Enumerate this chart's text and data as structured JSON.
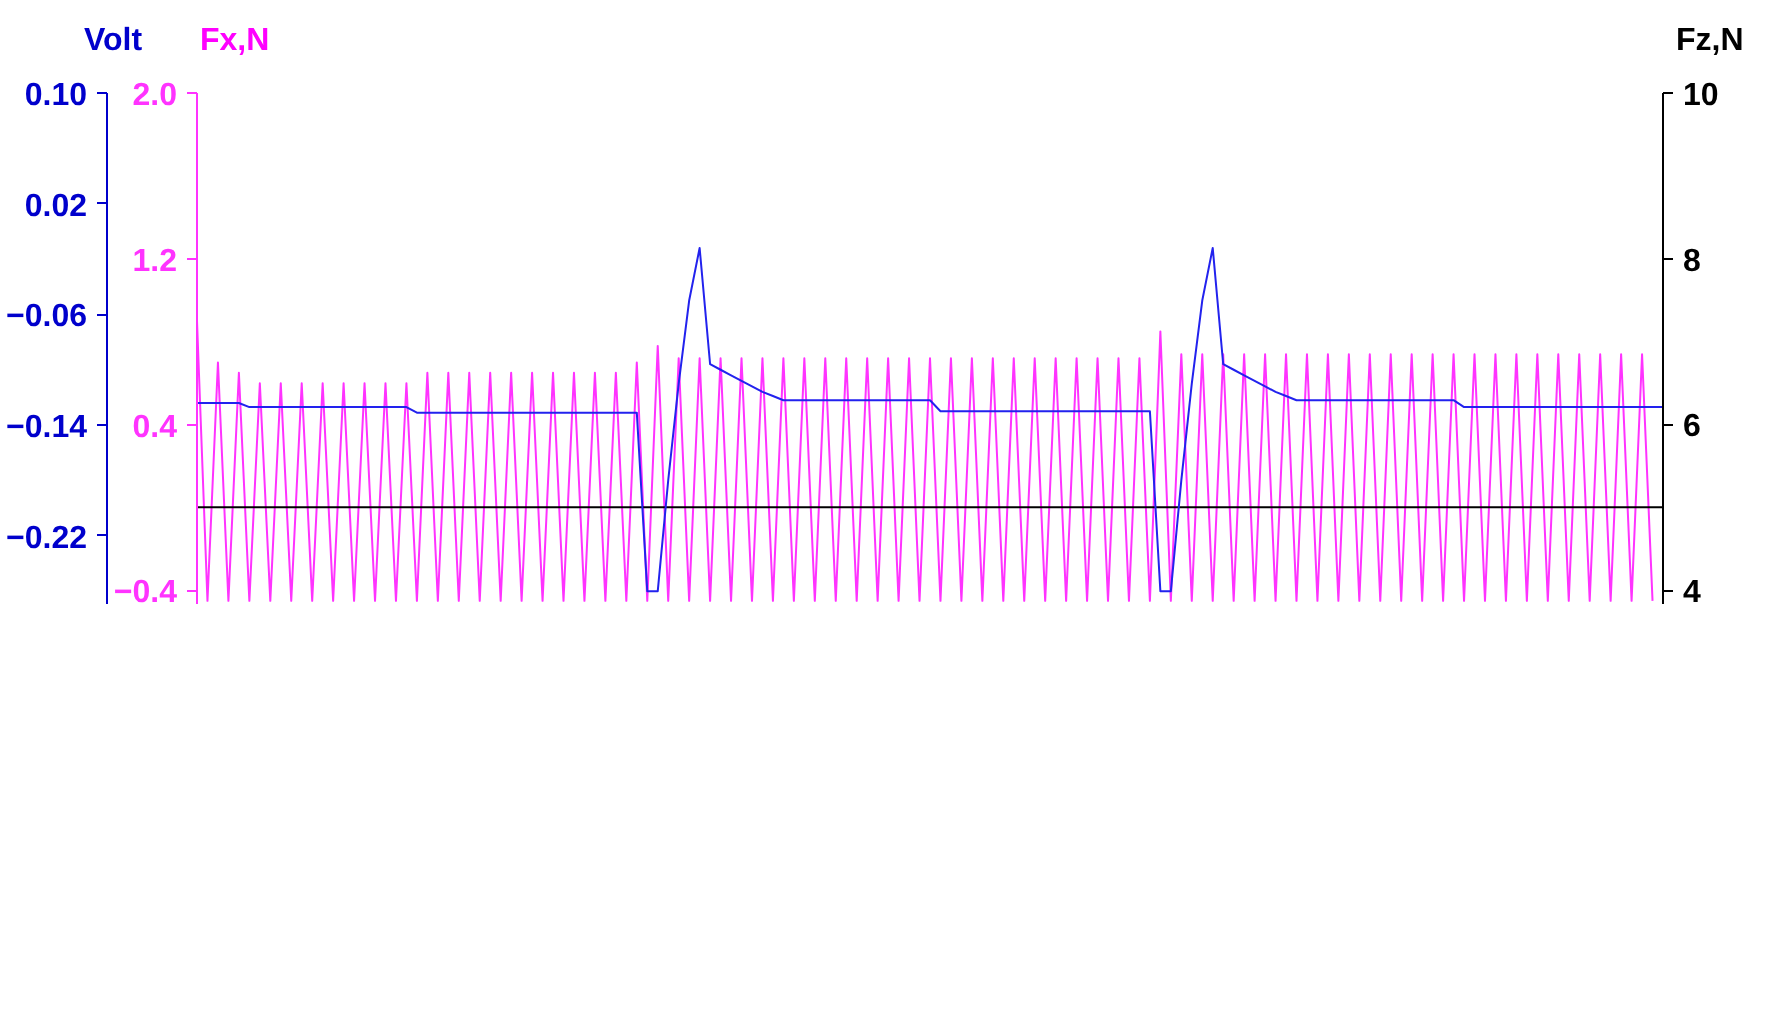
{
  "chart_data": {
    "type": "line",
    "ylabel": "Fx,N",
    "y2label": "Fz,N",
    "y3label": "Volt",
    "categories": [
      null,
      null,
      null,
      null,
      null,
      null,
      null,
      null,
      null,
      null,
      null,
      null,
      null,
      null,
      null,
      null,
      null,
      null,
      null,
      null,
      null,
      null,
      null,
      null,
      null,
      null,
      null,
      null,
      null,
      null,
      null,
      null,
      null,
      null,
      null,
      null,
      null,
      null,
      null,
      null,
      null,
      null,
      null,
      null,
      null,
      null,
      null,
      null,
      null,
      null,
      null,
      null,
      null,
      null,
      null,
      null,
      null,
      null,
      null,
      null,
      null,
      null,
      null,
      null,
      null,
      null,
      null,
      null,
      null,
      null,
      null,
      null,
      null,
      null,
      null,
      null,
      null,
      null,
      null,
      null,
      null,
      null,
      null,
      null,
      null,
      null,
      null,
      null,
      null,
      null,
      null,
      null,
      null,
      null,
      null,
      null,
      null,
      null,
      null,
      null,
      null,
      null,
      null,
      null,
      null,
      null,
      null,
      null,
      null,
      null,
      null,
      null,
      null,
      null,
      null,
      null,
      null,
      null,
      null,
      null,
      null,
      null,
      null,
      null,
      null,
      null,
      null,
      null,
      null,
      null,
      null,
      null,
      null,
      null,
      null,
      null,
      null,
      null,
      null,
      null,
      null
    ],
    "series": [
      {
        "color": "#ff33ff",
        "values": [
          0.9,
          -0.45,
          0.7,
          -0.45,
          0.65,
          -0.45,
          0.6,
          -0.45,
          0.6,
          -0.45,
          0.6,
          -0.45,
          0.6,
          -0.45,
          0.6,
          -0.45,
          0.6,
          -0.45,
          0.6,
          -0.45,
          0.6,
          -0.45,
          0.65,
          -0.45,
          0.65,
          -0.45,
          0.65,
          -0.45,
          0.65,
          -0.45,
          0.65,
          -0.45,
          0.65,
          -0.45,
          0.65,
          -0.45,
          0.65,
          -0.45,
          0.65,
          -0.45,
          0.65,
          -0.45,
          0.7,
          -0.45,
          0.78,
          -0.45,
          0.72,
          -0.45,
          0.72,
          -0.45,
          0.72,
          -0.45,
          0.72,
          -0.45,
          0.72,
          -0.45,
          0.72,
          -0.45,
          0.72,
          -0.45,
          0.72,
          -0.45,
          0.72,
          -0.45,
          0.72,
          -0.45,
          0.72,
          -0.45,
          0.72,
          -0.45,
          0.72,
          -0.45,
          0.72,
          -0.45,
          0.72,
          -0.45,
          0.72,
          -0.45,
          0.72,
          -0.45,
          0.72,
          -0.45,
          0.72,
          -0.45,
          0.72,
          -0.45,
          0.72,
          -0.45,
          0.72,
          -0.45,
          0.72,
          -0.45,
          0.85,
          -0.45,
          0.74,
          -0.45,
          0.74,
          -0.45,
          0.74,
          -0.45,
          0.74,
          -0.45,
          0.74,
          -0.45,
          0.74,
          -0.45,
          0.74,
          -0.45,
          0.74,
          -0.45,
          0.74,
          -0.45,
          0.74,
          -0.45,
          0.74,
          -0.45,
          0.74,
          -0.45,
          0.74,
          -0.45,
          0.74,
          -0.45,
          0.74,
          -0.45,
          0.74,
          -0.45,
          0.74,
          -0.45,
          0.74,
          -0.45,
          0.74,
          -0.45,
          0.74,
          -0.45,
          0.74,
          -0.45,
          0.74,
          -0.45,
          0.74,
          -0.45,
          null
        ]
      },
      {
        "color": "#000000",
        "axis": "y2",
        "values": [
          5,
          5,
          5,
          5,
          5,
          5,
          5,
          5,
          5,
          5,
          5,
          5,
          5,
          5,
          5,
          5,
          5,
          5,
          5,
          5,
          5,
          5,
          5,
          5,
          5,
          5,
          5,
          5,
          5,
          5,
          5,
          5,
          5,
          5,
          5,
          5,
          5,
          5,
          5,
          5,
          5,
          5,
          5,
          5,
          5,
          5,
          5,
          5,
          5,
          5,
          5,
          5,
          5,
          5,
          5,
          5,
          5,
          5,
          5,
          5,
          5,
          5,
          5,
          5,
          5,
          5,
          5,
          5,
          5,
          5,
          5,
          5,
          5,
          5,
          5,
          5,
          5,
          5,
          5,
          5,
          5,
          5,
          5,
          5,
          5,
          5,
          5,
          5,
          5,
          5,
          5,
          5,
          5,
          5,
          5,
          5,
          5,
          5,
          5,
          5,
          5,
          5,
          5,
          5,
          5,
          5,
          5,
          5,
          5,
          5,
          5,
          5,
          5,
          5,
          5,
          5,
          5,
          5,
          5,
          5,
          5,
          5,
          5,
          5,
          5,
          5,
          5,
          5,
          5,
          5,
          5,
          5,
          5,
          5,
          5,
          5,
          5,
          5,
          5,
          5,
          5
        ]
      },
      {
        "color": "#2222ee",
        "axis": "y3",
        "values": [
          -0.124,
          -0.124,
          -0.124,
          -0.124,
          -0.124,
          -0.127,
          -0.127,
          -0.127,
          -0.127,
          -0.127,
          -0.127,
          -0.127,
          -0.127,
          -0.127,
          -0.127,
          -0.127,
          -0.127,
          -0.127,
          -0.127,
          -0.127,
          -0.127,
          -0.131,
          -0.131,
          -0.131,
          -0.131,
          -0.131,
          -0.131,
          -0.131,
          -0.131,
          -0.131,
          -0.131,
          -0.131,
          -0.131,
          -0.131,
          -0.131,
          -0.131,
          -0.131,
          -0.131,
          -0.131,
          -0.131,
          -0.131,
          -0.131,
          -0.131,
          -0.26,
          -0.26,
          -0.18,
          -0.11,
          -0.05,
          -0.012,
          -0.096,
          -0.1,
          -0.104,
          -0.108,
          -0.112,
          -0.116,
          -0.119,
          -0.122,
          -0.122,
          -0.122,
          -0.122,
          -0.122,
          -0.122,
          -0.122,
          -0.122,
          -0.122,
          -0.122,
          -0.122,
          -0.122,
          -0.122,
          -0.122,
          -0.122,
          -0.13,
          -0.13,
          -0.13,
          -0.13,
          -0.13,
          -0.13,
          -0.13,
          -0.13,
          -0.13,
          -0.13,
          -0.13,
          -0.13,
          -0.13,
          -0.13,
          -0.13,
          -0.13,
          -0.13,
          -0.13,
          -0.13,
          -0.13,
          -0.13,
          -0.26,
          -0.26,
          -0.18,
          -0.11,
          -0.05,
          -0.012,
          -0.096,
          -0.1,
          -0.104,
          -0.108,
          -0.112,
          -0.116,
          -0.119,
          -0.122,
          -0.122,
          -0.122,
          -0.122,
          -0.122,
          -0.122,
          -0.122,
          -0.122,
          -0.122,
          -0.122,
          -0.122,
          -0.122,
          -0.122,
          -0.122,
          -0.122,
          -0.122,
          -0.127,
          -0.127,
          -0.127,
          -0.127,
          -0.127,
          -0.127,
          -0.127,
          -0.127,
          -0.127,
          -0.127,
          -0.127,
          -0.127,
          -0.127,
          -0.127,
          -0.127,
          -0.127,
          -0.127,
          -0.127,
          -0.127,
          -0.127
        ]
      }
    ],
    "ylim": [
      -0.47,
      2.0
    ],
    "yticks": [
      {
        "value": 2.0,
        "label": "2.0"
      },
      {
        "value": 1.2,
        "label": "1.2"
      },
      {
        "value": 0.4,
        "label": "0.4"
      },
      -0.4
    ],
    "y2lim": [
      3.82,
      10
    ],
    "y2ticks": [
      10,
      8,
      6,
      4
    ],
    "y3lim": [
      -0.27,
      0.1
    ],
    "y3ticks": [
      {
        "value": 0.1,
        "label": "0.10"
      },
      0.02,
      -0.06,
      -0.14,
      -0.22
    ],
    "tick_labels": "y"
  }
}
